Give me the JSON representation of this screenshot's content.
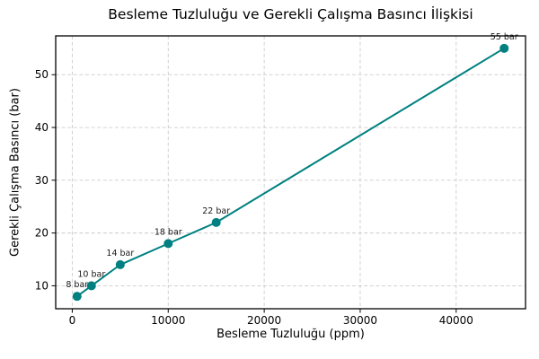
{
  "chart_data": {
    "type": "line",
    "title": "Besleme Tuzluluğu ve Gerekli Çalışma Basıncı İlişkisi",
    "xlabel": "Besleme Tuzluluğu (ppm)",
    "ylabel": "Gerekli Çalışma Basıncı (bar)",
    "x": [
      500,
      2000,
      5000,
      10000,
      15000,
      45000
    ],
    "y": [
      8,
      10,
      14,
      18,
      22,
      55
    ],
    "point_labels": [
      "8 bar",
      "10 bar",
      "14 bar",
      "18 bar",
      "22 bar",
      "55 bar"
    ],
    "xticks": [
      0,
      10000,
      20000,
      30000,
      40000
    ],
    "yticks": [
      10,
      20,
      30,
      40,
      50
    ],
    "xlim": [
      -1725,
      47225
    ],
    "ylim": [
      5.65,
      57.35
    ],
    "grid": true,
    "grid_style": "dashed",
    "legend_position": "none",
    "colors": {
      "line": "#008080",
      "marker": "#008080",
      "grid": "#cccccc",
      "axis": "#000000",
      "tick_text": "#000000",
      "annotation_text": "#1a1a1a",
      "background": "#ffffff"
    }
  }
}
